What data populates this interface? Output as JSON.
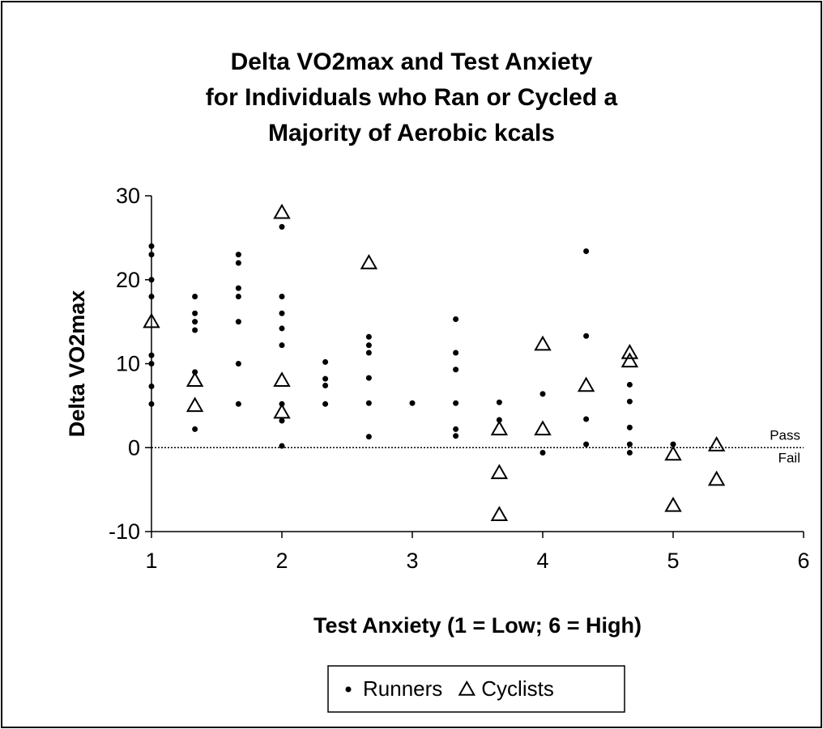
{
  "chart_data": {
    "type": "scatter",
    "title": [
      "Delta VO2max and Test Anxiety",
      "for Individuals who Ran or Cycled a",
      "Majority of Aerobic kcals"
    ],
    "x_label": "Test Anxiety (1 = Low; 6 = High)",
    "y_label": "Delta VO2max",
    "xlim": [
      1,
      6
    ],
    "xticks": [
      1,
      2,
      3,
      4,
      5,
      6
    ],
    "ylim": [
      -10,
      30
    ],
    "yticks": [
      -10,
      0,
      10,
      20,
      30
    ],
    "reference_line": {
      "y": 0,
      "labels": [
        "Pass",
        "Fail"
      ]
    },
    "legend": "bottom",
    "series": [
      {
        "name": "Runners",
        "marker": "circle",
        "color": "#000000",
        "x": [
          1,
          1,
          1,
          1,
          1,
          1,
          1,
          1,
          1.333,
          1.333,
          1.333,
          1.333,
          1.333,
          1.333,
          1.667,
          1.667,
          1.667,
          1.667,
          1.667,
          1.667,
          1.667,
          2,
          2,
          2,
          2,
          2,
          2,
          2,
          2,
          2.333,
          2.333,
          2.333,
          2.333,
          2.667,
          2.667,
          2.667,
          2.667,
          2.667,
          2.667,
          3,
          3.333,
          3.333,
          3.333,
          3.333,
          3.333,
          3.333,
          3.667,
          3.667,
          4,
          4,
          4.333,
          4.333,
          4.333,
          4.333,
          4.667,
          4.667,
          4.667,
          4.667,
          4.667,
          5
        ],
        "y": [
          24,
          23,
          20,
          18,
          11,
          10,
          7.3,
          5.2,
          18,
          16,
          15,
          14,
          9,
          2.2,
          23,
          22,
          19,
          18,
          15,
          10,
          5.2,
          26.3,
          18,
          16,
          14.2,
          12.2,
          5.2,
          3.2,
          0.2,
          10.2,
          8.2,
          7.4,
          5.2,
          13.2,
          12.2,
          11.3,
          8.3,
          5.3,
          1.3,
          5.3,
          15.3,
          11.3,
          9.3,
          5.3,
          2.2,
          1.4,
          5.4,
          3.3,
          6.4,
          -0.6,
          23.4,
          13.3,
          3.4,
          0.4,
          7.5,
          5.5,
          2.4,
          0.4,
          -0.6,
          0.4
        ]
      },
      {
        "name": "Cyclists",
        "marker": "triangle",
        "color": "#000000",
        "x": [
          1,
          1.333,
          1.333,
          2,
          2,
          2,
          2.667,
          3.667,
          3.667,
          3.667,
          4,
          4,
          4.333,
          4.667,
          4.667,
          5,
          5,
          5.333,
          5.333
        ],
        "y": [
          15,
          8,
          5,
          28,
          8,
          4.2,
          22,
          2.2,
          -3,
          -8,
          12.3,
          2.2,
          7.4,
          11.3,
          10.3,
          -0.8,
          -6.9,
          0.3,
          -3.8
        ]
      }
    ]
  }
}
